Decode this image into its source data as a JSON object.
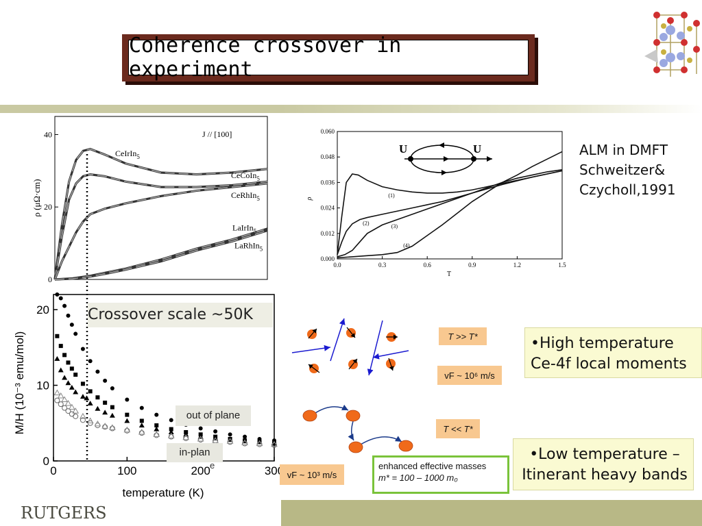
{
  "slide": {
    "title": "Coherence crossover in experiment",
    "logo": "RUTGERS",
    "crossover_label": "Crossover scale ~50K",
    "alm_text": [
      "ALM in DMFT",
      "Schweitzer&",
      "Czycholl,1991"
    ],
    "high_temp": [
      "•High temperature",
      "Ce-4f local moments"
    ],
    "low_temp": [
      "•Low temperature –",
      "Itinerant heavy bands"
    ],
    "tag_high": "T >> T*",
    "tag_low": "T << T*",
    "vf_high": "vF ~ 10⁶ m/s",
    "vf_low": "vF ~ 10³ m/s",
    "masses_line1": "enhanced effective masses",
    "masses_line2": "m* = 100 – 1000 m₀",
    "out_of_plane": "out of plane",
    "in_plane": "in-plan",
    "stray_e": "e"
  },
  "colors": {
    "title_frame": "#6b2a1e",
    "band": "#b8b886",
    "callout_bg": "#fafad2",
    "orange_tag": "#f8c890",
    "ball": "#f06a1a",
    "arrow_blue": "#1a1ad0",
    "green_border": "#7ac33a"
  },
  "chart_data": [
    {
      "type": "line",
      "title": "J // [100]",
      "ylabel": "ρ (μΩ·cm)",
      "ylim": [
        0,
        45
      ],
      "yticks": [
        "0",
        "20",
        "40"
      ],
      "series": [
        {
          "name": "CeCoIn5",
          "x": [
            0,
            10,
            20,
            30,
            40,
            50,
            70,
            100,
            150,
            200,
            250,
            300
          ],
          "y": [
            0,
            15,
            27,
            33,
            35.5,
            36,
            34.5,
            32,
            29.5,
            29,
            29.5,
            30.5
          ]
        },
        {
          "name": "CeIrIn5",
          "x": [
            0,
            10,
            20,
            30,
            40,
            50,
            70,
            100,
            150,
            200,
            250,
            300
          ],
          "y": [
            0,
            12,
            22,
            26.5,
            28.5,
            29,
            28.5,
            27,
            25.5,
            25.5,
            26,
            27
          ]
        },
        {
          "name": "CeRhIn5",
          "x": [
            0,
            10,
            20,
            30,
            40,
            50,
            70,
            100,
            150,
            200,
            250,
            300
          ],
          "y": [
            0,
            5,
            9,
            13,
            16,
            18,
            19.5,
            21,
            23,
            24.5,
            25.5,
            26.5
          ]
        },
        {
          "name": "LaIrIn5",
          "x": [
            0,
            25,
            50,
            75,
            100,
            150,
            200,
            250,
            300
          ],
          "y": [
            0,
            0.3,
            1,
            2,
            3,
            5.5,
            8.5,
            11,
            14
          ]
        },
        {
          "name": "LaRhIn5",
          "x": [
            0,
            25,
            50,
            75,
            100,
            150,
            200,
            250,
            300
          ],
          "y": [
            0,
            0.2,
            0.8,
            1.7,
            2.7,
            5,
            8,
            10.5,
            13.5
          ]
        }
      ]
    },
    {
      "type": "scatter",
      "xlabel": "temperature (K)",
      "ylabel": "M/H (10⁻³ emu/mol)",
      "xlim": [
        0,
        300
      ],
      "ylim": [
        0,
        22
      ],
      "xticks": [
        "0",
        "100",
        "200",
        "300"
      ],
      "yticks": [
        "0",
        "10",
        "20"
      ],
      "series": [
        {
          "marker": "filled-circle",
          "x": [
            5,
            10,
            15,
            20,
            25,
            30,
            40,
            50,
            60,
            70,
            80,
            100,
            120,
            140,
            160,
            180,
            200,
            220,
            240,
            260,
            280,
            300
          ],
          "y": [
            22,
            21.5,
            20.5,
            19.2,
            18,
            16.8,
            14.8,
            13.2,
            11.8,
            10.6,
            9.6,
            8.1,
            7,
            6.1,
            5.4,
            4.8,
            4.3,
            3.9,
            3.5,
            3.2,
            2.9,
            2.7
          ]
        },
        {
          "marker": "filled-square",
          "x": [
            5,
            10,
            15,
            20,
            25,
            30,
            40,
            50,
            60,
            70,
            80,
            100,
            120,
            140,
            160,
            180,
            200,
            220,
            240,
            260,
            280,
            300
          ],
          "y": [
            16.5,
            15.2,
            14,
            13,
            12.2,
            11.4,
            10.2,
            9.2,
            8.4,
            7.7,
            7.1,
            6.1,
            5.3,
            4.7,
            4.2,
            3.8,
            3.5,
            3.2,
            2.9,
            2.7,
            2.5,
            2.3
          ]
        },
        {
          "marker": "filled-triangle",
          "x": [
            5,
            10,
            15,
            20,
            25,
            30,
            40,
            45,
            50,
            60,
            70,
            80,
            100,
            120,
            140,
            160,
            180,
            200,
            220,
            240,
            260,
            280,
            300
          ],
          "y": [
            13.5,
            12,
            11,
            10.3,
            9.7,
            9.1,
            8.5,
            8.3,
            7.6,
            6.9,
            6.4,
            6,
            5.3,
            4.7,
            4.2,
            3.8,
            3.5,
            3.2,
            3,
            2.8,
            2.6,
            2.5,
            2.4
          ]
        },
        {
          "marker": "open-circle",
          "x": [
            5,
            10,
            15,
            20,
            25,
            30,
            40,
            50,
            60,
            70,
            80,
            100,
            120,
            140,
            160,
            180,
            200,
            220,
            240,
            260,
            280,
            300
          ],
          "y": [
            8,
            7.5,
            7,
            6.6,
            6.2,
            5.9,
            5.4,
            5,
            4.7,
            4.5,
            4.3,
            4,
            3.7,
            3.4,
            3.2,
            3,
            2.8,
            2.6,
            2.5,
            2.3,
            2.2,
            2.1
          ]
        },
        {
          "marker": "open-triangle",
          "x": [
            5,
            10,
            15,
            20,
            25,
            30,
            40,
            50,
            60,
            70,
            80,
            100,
            120,
            140,
            160,
            180,
            200,
            220,
            240,
            260,
            280,
            300
          ],
          "y": [
            9,
            8.6,
            8.1,
            7.6,
            7.1,
            6.6,
            5.9,
            5.3,
            4.9,
            4.6,
            4.4,
            4.1,
            3.8,
            3.5,
            3.3,
            3.1,
            2.9,
            2.7,
            2.6,
            2.4,
            2.3,
            2.2
          ]
        }
      ]
    },
    {
      "type": "line",
      "xlabel": "T",
      "ylabel": "ρ",
      "xlim": [
        0,
        1.5
      ],
      "ylim": [
        0,
        0.06
      ],
      "xticks": [
        "0.0",
        "0.3",
        "0.6",
        "0.9",
        "1.2",
        "1.5"
      ],
      "yticks": [
        "0.000",
        "0.012",
        "0.024",
        "0.036",
        "0.048",
        "0.060"
      ],
      "inset_labels": [
        "U",
        "U"
      ],
      "series": [
        {
          "name": "(1)",
          "x": [
            0,
            0.03,
            0.06,
            0.1,
            0.14,
            0.2,
            0.3,
            0.4,
            0.5,
            0.6,
            0.7,
            0.8,
            0.9,
            1.0,
            1.1,
            1.2,
            1.3,
            1.4,
            1.5
          ],
          "y": [
            0.002,
            0.02,
            0.036,
            0.04,
            0.0395,
            0.037,
            0.034,
            0.0325,
            0.0315,
            0.031,
            0.031,
            0.0315,
            0.0325,
            0.034,
            0.0355,
            0.037,
            0.0385,
            0.04,
            0.0415
          ]
        },
        {
          "name": "(2)",
          "x": [
            0,
            0.03,
            0.06,
            0.1,
            0.15,
            0.2,
            0.3,
            0.4,
            0.5,
            0.6,
            0.7,
            0.8,
            0.9,
            1.0,
            1.1,
            1.2,
            1.3,
            1.4,
            1.5
          ],
          "y": [
            0.002,
            0.008,
            0.013,
            0.0165,
            0.0185,
            0.0195,
            0.021,
            0.0225,
            0.024,
            0.0255,
            0.027,
            0.029,
            0.031,
            0.033,
            0.035,
            0.0368,
            0.0385,
            0.04,
            0.0415
          ]
        },
        {
          "name": "(3)",
          "x": [
            0,
            0.05,
            0.1,
            0.15,
            0.2,
            0.3,
            0.4,
            0.5,
            0.6,
            0.7,
            0.8,
            0.9,
            1.0,
            1.1,
            1.2,
            1.3,
            1.4,
            1.5
          ],
          "y": [
            0.001,
            0.002,
            0.004,
            0.008,
            0.012,
            0.016,
            0.0185,
            0.021,
            0.0235,
            0.026,
            0.0285,
            0.031,
            0.0335,
            0.036,
            0.038,
            0.0395,
            0.041,
            0.042
          ]
        },
        {
          "name": "(4)",
          "x": [
            0,
            0.1,
            0.2,
            0.3,
            0.4,
            0.5,
            0.6,
            0.7,
            0.8,
            0.9,
            1.0,
            1.1,
            1.2,
            1.3,
            1.4,
            1.5
          ],
          "y": [
            0.0005,
            0.001,
            0.0015,
            0.002,
            0.003,
            0.006,
            0.011,
            0.016,
            0.0215,
            0.027,
            0.0315,
            0.036,
            0.0395,
            0.0435,
            0.047,
            0.0505
          ]
        }
      ]
    }
  ]
}
